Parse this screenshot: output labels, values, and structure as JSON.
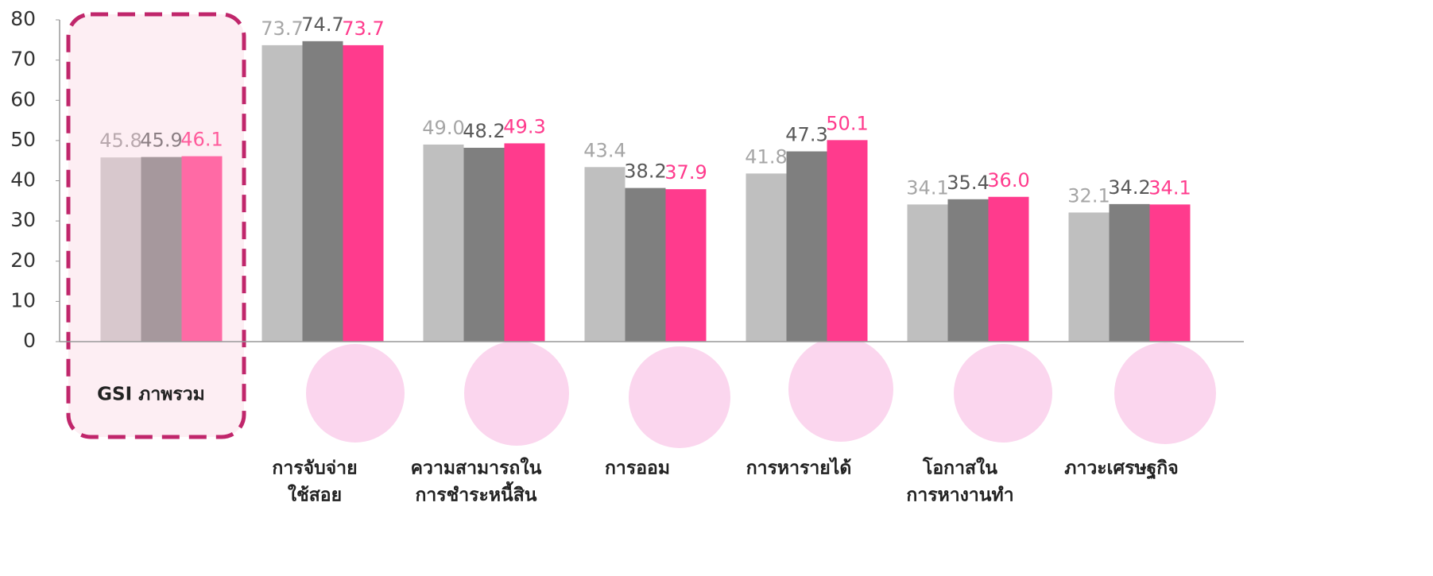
{
  "chart_data": {
    "type": "bar",
    "categories": [
      [
        "GSI ภาพรวม"
      ],
      [
        "การจับจ่าย",
        "ใช้สอย"
      ],
      [
        "ความสามารถใน",
        "การชำระหนี้สิน"
      ],
      [
        "การออม"
      ],
      [
        "การหารายได้"
      ],
      [
        "โอกาสใน",
        "การหางานทำ"
      ],
      [
        "ภาวะเศรษฐกิจ"
      ]
    ],
    "series": [
      {
        "color": "#bfbfbf",
        "label_color": "#a6a6a6",
        "first_color": "#d8c8cd",
        "first_label_color": "#b8a8ad",
        "values": [
          45.8,
          73.7,
          49.0,
          43.4,
          41.8,
          34.1,
          32.1
        ],
        "value_labels": [
          "45.8",
          "73.7",
          "49.0",
          "43.4",
          "41.8",
          "34.1",
          "32.1"
        ]
      },
      {
        "color": "#7f7f7f",
        "label_color": "#595959",
        "first_color": "#a6989d",
        "first_label_color": "#8c7f84",
        "values": [
          45.9,
          74.7,
          48.2,
          38.2,
          47.3,
          35.4,
          34.2
        ],
        "value_labels": [
          "45.9",
          "74.7",
          "48.2",
          "38.2",
          "47.3",
          "35.4",
          "34.2"
        ]
      },
      {
        "color": "#ff3b8d",
        "label_color": "#ff3b8d",
        "first_color": "#ff6aa5",
        "first_label_color": "#ff5c9c",
        "values": [
          46.1,
          73.7,
          49.3,
          37.9,
          50.1,
          36.0,
          34.1
        ],
        "value_labels": [
          "46.1",
          "73.7",
          "49.3",
          "37.9",
          "50.1",
          "36.0",
          "34.1"
        ]
      }
    ],
    "ylim": [
      0,
      80
    ],
    "yticks": [
      0,
      10,
      20,
      30,
      40,
      50,
      60,
      70,
      80
    ]
  }
}
